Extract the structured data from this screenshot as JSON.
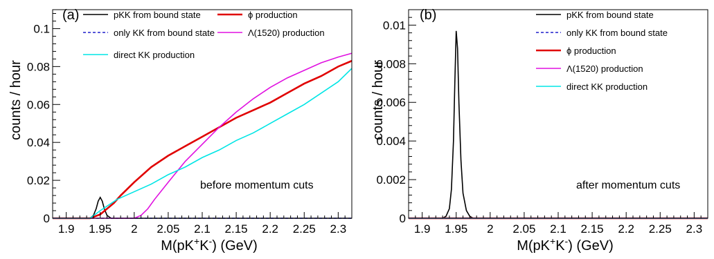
{
  "chart_data": [
    {
      "type": "line",
      "panel_label": "(a)",
      "annotation": "before momentum cuts",
      "xlabel": "M(pK⁺K⁻) (GeV)",
      "ylabel": "counts / hour",
      "xlim": [
        1.88,
        2.32
      ],
      "ylim": [
        0,
        0.11
      ],
      "xticks": [
        "1.9",
        "1.95",
        "2",
        "2.05",
        "2.1",
        "2.15",
        "2.2",
        "2.25",
        "2.3"
      ],
      "xtick_values": [
        1.9,
        1.95,
        2.0,
        2.05,
        2.1,
        2.15,
        2.2,
        2.25,
        2.3
      ],
      "yticks": [
        "0",
        "0.02",
        "0.04",
        "0.06",
        "0.08",
        "0.1"
      ],
      "ytick_values": [
        0,
        0.02,
        0.04,
        0.06,
        0.08,
        0.1
      ],
      "legend_placement": "top",
      "series": [
        {
          "name": "pKK from bound state",
          "color": "#000000",
          "dashed": false,
          "x": [
            1.88,
            1.935,
            1.94,
            1.944,
            1.947,
            1.95,
            1.953,
            1.956,
            1.96,
            1.966,
            2.32
          ],
          "y": [
            0,
            0,
            0.0015,
            0.005,
            0.009,
            0.011,
            0.009,
            0.005,
            0.0015,
            0,
            0
          ]
        },
        {
          "name": "only KK from bound state",
          "color": "#1f1fcc",
          "dashed": true,
          "x": [
            1.88,
            2.32
          ],
          "y": [
            0,
            0
          ]
        },
        {
          "name": "ϕ production",
          "color": "#e00000",
          "dashed": false,
          "x": [
            1.88,
            1.935,
            1.95,
            1.96,
            1.97,
            1.98,
            2.0,
            2.025,
            2.05,
            2.075,
            2.1,
            2.125,
            2.15,
            2.175,
            2.2,
            2.225,
            2.25,
            2.275,
            2.3,
            2.32
          ],
          "y": [
            0,
            0,
            0.002,
            0.005,
            0.008,
            0.012,
            0.019,
            0.027,
            0.033,
            0.038,
            0.043,
            0.048,
            0.053,
            0.057,
            0.061,
            0.066,
            0.071,
            0.075,
            0.08,
            0.083
          ]
        },
        {
          "name": "Λ(1520) production",
          "color": "#e010e0",
          "dashed": false,
          "x": [
            1.88,
            2.0,
            2.01,
            2.02,
            2.03,
            2.05,
            2.075,
            2.1,
            2.125,
            2.15,
            2.175,
            2.2,
            2.225,
            2.25,
            2.275,
            2.3,
            2.32
          ],
          "y": [
            0,
            0,
            0.0015,
            0.005,
            0.01,
            0.019,
            0.03,
            0.039,
            0.048,
            0.056,
            0.063,
            0.069,
            0.074,
            0.078,
            0.082,
            0.085,
            0.087
          ]
        },
        {
          "name": "direct KK production",
          "color": "#00e5e5",
          "dashed": false,
          "x": [
            1.88,
            1.935,
            1.95,
            1.975,
            2.0,
            2.025,
            2.05,
            2.075,
            2.1,
            2.125,
            2.15,
            2.175,
            2.2,
            2.225,
            2.25,
            2.275,
            2.3,
            2.32
          ],
          "y": [
            0,
            0,
            0.004,
            0.01,
            0.014,
            0.018,
            0.023,
            0.027,
            0.032,
            0.036,
            0.041,
            0.045,
            0.05,
            0.055,
            0.06,
            0.066,
            0.072,
            0.079
          ]
        }
      ]
    },
    {
      "type": "line",
      "panel_label": "(b)",
      "annotation": "after momentum cuts",
      "xlabel": "M(pK⁺K⁻) (GeV)",
      "ylabel": "counts / hour",
      "xlim": [
        1.88,
        2.32
      ],
      "ylim": [
        0,
        0.0108
      ],
      "xticks": [
        "1.9",
        "1.95",
        "2",
        "2.05",
        "2.1",
        "2.15",
        "2.2",
        "2.25",
        "2.3"
      ],
      "xtick_values": [
        1.9,
        1.95,
        2.0,
        2.05,
        2.1,
        2.15,
        2.2,
        2.25,
        2.3
      ],
      "yticks": [
        "0",
        "0.002",
        "0.004",
        "0.006",
        "0.008",
        "0.01"
      ],
      "ytick_values": [
        0,
        0.002,
        0.004,
        0.006,
        0.008,
        0.01
      ],
      "legend_placement": "top-right",
      "series": [
        {
          "name": "pKK from bound state",
          "color": "#000000",
          "dashed": false,
          "x": [
            1.88,
            1.93,
            1.935,
            1.94,
            1.943,
            1.946,
            1.948,
            1.95,
            1.952,
            1.954,
            1.957,
            1.96,
            1.965,
            1.97,
            1.975,
            2.32
          ],
          "y": [
            0,
            0,
            0.0001,
            0.0005,
            0.0015,
            0.004,
            0.007,
            0.0097,
            0.0088,
            0.006,
            0.003,
            0.0013,
            0.0004,
            0.0001,
            0,
            0
          ]
        },
        {
          "name": "only KK from bound state",
          "color": "#1f1fcc",
          "dashed": true,
          "x": [
            1.88,
            2.32
          ],
          "y": [
            0,
            0
          ]
        },
        {
          "name": "ϕ production",
          "color": "#e00000",
          "dashed": false,
          "x": [
            1.88,
            2.32
          ],
          "y": [
            0,
            0
          ]
        },
        {
          "name": "Λ(1520) production",
          "color": "#e010e0",
          "dashed": false,
          "x": [
            1.88,
            2.32
          ],
          "y": [
            0,
            0
          ]
        },
        {
          "name": "direct KK production",
          "color": "#00e5e5",
          "dashed": false,
          "x": [
            1.88,
            2.32
          ],
          "y": [
            0,
            0
          ]
        }
      ]
    }
  ]
}
